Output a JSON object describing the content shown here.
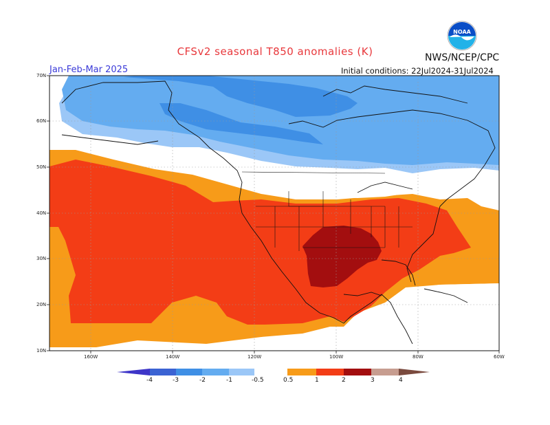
{
  "header": {
    "title": "CFSv2 seasonal T850 anomalies (K)",
    "agency": "NWS/NCEP/CPC",
    "period": "Jan-Feb-Mar 2025",
    "initial_conditions": "Initial conditions: 22Jul2024-31Jul2024",
    "logo_text": "NOAA"
  },
  "map": {
    "lat_labels": [
      "70N",
      "60N",
      "50N",
      "40N",
      "30N",
      "20N",
      "10N"
    ],
    "lon_labels": [
      "160W",
      "140W",
      "120W",
      "100W",
      "80W",
      "60W"
    ]
  },
  "legend": {
    "ticks": [
      "-4",
      "-3",
      "-2",
      "-1",
      "-0.5",
      "0.5",
      "1",
      "2",
      "3",
      "4"
    ],
    "colors": [
      "#3d35c8",
      "#3b63d3",
      "#3f8fe5",
      "#64acf0",
      "#9bc7f7",
      "#ffffff",
      "#f79b19",
      "#f33d16",
      "#a30e0f",
      "#c79d90",
      "#7a4a3e"
    ]
  }
}
